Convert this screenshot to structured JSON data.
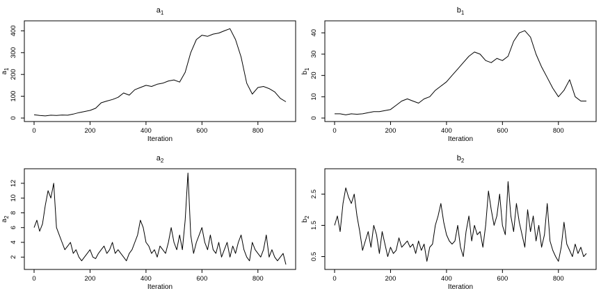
{
  "chart_data": [
    {
      "type": "line",
      "title": "a",
      "title_sub": "1",
      "xlabel": "Iteration",
      "ylabel": "a",
      "ylabel_sub": "1",
      "xlim": [
        0,
        900
      ],
      "ylim": [
        0,
        430
      ],
      "xticks": [
        0,
        200,
        400,
        600,
        800
      ],
      "yticks": [
        0,
        100,
        200,
        300,
        400
      ],
      "grid": false,
      "series": [
        {
          "x": [
            0,
            20,
            40,
            60,
            80,
            100,
            120,
            140,
            160,
            180,
            200,
            220,
            240,
            260,
            280,
            300,
            320,
            340,
            360,
            380,
            400,
            420,
            440,
            460,
            480,
            500,
            520,
            540,
            560,
            580,
            600,
            620,
            640,
            660,
            680,
            700,
            720,
            740,
            760,
            780,
            800,
            820,
            840,
            860,
            880,
            900
          ],
          "values": [
            15,
            12,
            10,
            13,
            12,
            14,
            13,
            18,
            25,
            30,
            35,
            45,
            70,
            78,
            85,
            95,
            115,
            105,
            130,
            140,
            150,
            145,
            155,
            160,
            170,
            175,
            165,
            210,
            300,
            360,
            380,
            375,
            385,
            390,
            400,
            410,
            360,
            280,
            160,
            110,
            140,
            145,
            135,
            120,
            90,
            75
          ]
        }
      ]
    },
    {
      "type": "line",
      "title": "b",
      "title_sub": "1",
      "xlabel": "Iteration",
      "ylabel": "b",
      "ylabel_sub": "1",
      "xlim": [
        0,
        900
      ],
      "ylim": [
        0,
        44
      ],
      "xticks": [
        0,
        200,
        400,
        600,
        800
      ],
      "yticks": [
        0,
        10,
        20,
        30,
        40
      ],
      "grid": false,
      "series": [
        {
          "x": [
            0,
            20,
            40,
            60,
            80,
            100,
            120,
            140,
            160,
            180,
            200,
            220,
            240,
            260,
            280,
            300,
            320,
            340,
            360,
            380,
            400,
            420,
            440,
            460,
            480,
            500,
            520,
            540,
            560,
            580,
            600,
            620,
            640,
            660,
            680,
            700,
            720,
            740,
            760,
            780,
            800,
            820,
            840,
            860,
            880,
            900
          ],
          "values": [
            2,
            2,
            1.5,
            2,
            1.8,
            2,
            2.5,
            3,
            3,
            3.5,
            4,
            6,
            8,
            9,
            8,
            7,
            9,
            10,
            13,
            15,
            17,
            20,
            23,
            26,
            29,
            31,
            30,
            27,
            26,
            28,
            27,
            29,
            36,
            40,
            41,
            38,
            30,
            24,
            19,
            14,
            10,
            13,
            18,
            10,
            8,
            8
          ]
        }
      ]
    },
    {
      "type": "line",
      "title": "a",
      "title_sub": "2",
      "xlabel": "Iteration",
      "ylabel": "a",
      "ylabel_sub": "2",
      "xlim": [
        0,
        900
      ],
      "ylim": [
        0.8,
        13.5
      ],
      "xticks": [
        0,
        200,
        400,
        600,
        800
      ],
      "yticks": [
        2,
        4,
        6,
        8,
        10,
        12
      ],
      "grid": false,
      "series": [
        {
          "x": [
            0,
            10,
            20,
            30,
            40,
            50,
            60,
            70,
            80,
            90,
            100,
            110,
            120,
            130,
            140,
            150,
            160,
            170,
            180,
            190,
            200,
            210,
            220,
            230,
            240,
            250,
            260,
            270,
            280,
            290,
            300,
            310,
            320,
            330,
            340,
            350,
            360,
            370,
            380,
            390,
            400,
            410,
            420,
            430,
            440,
            450,
            460,
            470,
            480,
            490,
            500,
            510,
            520,
            530,
            540,
            550,
            560,
            570,
            580,
            590,
            600,
            610,
            620,
            630,
            640,
            650,
            660,
            670,
            680,
            690,
            700,
            710,
            720,
            730,
            740,
            750,
            760,
            770,
            780,
            790,
            800,
            810,
            820,
            830,
            840,
            850,
            860,
            870,
            880,
            890,
            900
          ],
          "values": [
            6,
            7,
            5.5,
            6.5,
            9,
            11,
            10,
            12,
            6,
            5,
            4,
            3,
            3.5,
            4,
            2.5,
            3,
            2,
            1.5,
            2,
            2.5,
            3,
            2,
            1.8,
            2.5,
            3,
            3.5,
            2.5,
            3,
            4,
            2.5,
            3,
            2.5,
            2,
            1.5,
            2.5,
            3,
            4,
            5,
            7,
            6,
            4,
            3.5,
            2.5,
            3,
            2,
            3.5,
            3,
            2.5,
            4,
            6,
            4,
            3,
            5,
            3,
            7,
            13.4,
            5,
            2.5,
            4,
            5,
            6,
            4,
            3,
            5,
            3,
            2.5,
            4,
            2,
            3,
            4,
            2,
            3.5,
            2.5,
            4,
            5,
            3,
            2,
            1.5,
            4,
            3,
            2.5,
            2,
            3,
            5,
            2,
            3,
            2,
            1.5,
            2,
            2.5,
            1
          ]
        }
      ]
    },
    {
      "type": "line",
      "title": "b",
      "title_sub": "2",
      "xlabel": "Iteration",
      "ylabel": "b",
      "ylabel_sub": "2",
      "xlim": [
        0,
        900
      ],
      "ylim": [
        0.2,
        3.2
      ],
      "xticks": [
        0,
        200,
        400,
        600,
        800
      ],
      "yticks": [
        0.5,
        1.5,
        2.5
      ],
      "grid": false,
      "series": [
        {
          "x": [
            0,
            10,
            20,
            30,
            40,
            50,
            60,
            70,
            80,
            90,
            100,
            110,
            120,
            130,
            140,
            150,
            160,
            170,
            180,
            190,
            200,
            210,
            220,
            230,
            240,
            250,
            260,
            270,
            280,
            290,
            300,
            310,
            320,
            330,
            340,
            350,
            360,
            370,
            380,
            390,
            400,
            410,
            420,
            430,
            440,
            450,
            460,
            470,
            480,
            490,
            500,
            510,
            520,
            530,
            540,
            550,
            560,
            570,
            580,
            590,
            600,
            610,
            620,
            630,
            640,
            650,
            660,
            670,
            680,
            690,
            700,
            710,
            720,
            730,
            740,
            750,
            760,
            770,
            780,
            790,
            800,
            810,
            820,
            830,
            840,
            850,
            860,
            870,
            880,
            890,
            900
          ],
          "values": [
            1.5,
            1.8,
            1.3,
            2.2,
            2.7,
            2.4,
            2.2,
            2.5,
            1.8,
            1.3,
            0.7,
            1,
            1.3,
            0.8,
            1.5,
            1.2,
            0.6,
            1.3,
            0.9,
            0.5,
            0.8,
            0.6,
            0.7,
            1.1,
            0.8,
            0.9,
            1,
            0.8,
            0.9,
            0.6,
            1,
            0.7,
            0.9,
            0.35,
            0.8,
            0.9,
            1.5,
            1.8,
            2.2,
            1.6,
            1.2,
            1,
            0.9,
            1,
            1.5,
            0.8,
            0.5,
            1.3,
            1.8,
            1,
            1.5,
            1.2,
            1.3,
            0.8,
            1.5,
            2.6,
            2,
            1.5,
            1.8,
            2.5,
            1.5,
            1.2,
            2.9,
            1.8,
            1.3,
            2.2,
            1.6,
            1.2,
            0.8,
            2,
            1.3,
            1.8,
            1,
            1.5,
            0.8,
            1.2,
            2.2,
            1,
            0.7,
            0.5,
            0.35,
            0.8,
            1.6,
            0.9,
            0.7,
            0.5,
            0.9,
            0.6,
            0.8,
            0.5,
            0.6
          ]
        }
      ]
    }
  ]
}
